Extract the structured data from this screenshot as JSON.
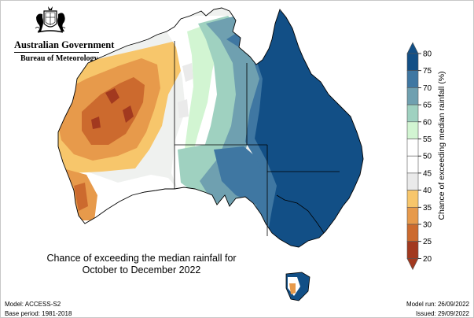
{
  "header": {
    "government": "Australian Government",
    "bureau": "Bureau of Meteorology"
  },
  "map": {
    "caption_line1": "Chance of exceeding the median rainfall for",
    "caption_line2": "October to December 2022"
  },
  "legend": {
    "title": "Chance of exceeding median rainfall (%)",
    "ticks": [
      "80",
      "75",
      "70",
      "65",
      "60",
      "55",
      "50",
      "45",
      "40",
      "35",
      "30",
      "25",
      "20"
    ],
    "bins": [
      {
        "range": "75-80+",
        "color": "#124f86"
      },
      {
        "range": "70-75",
        "color": "#3f77a2"
      },
      {
        "range": "65-70",
        "color": "#6fa0b0"
      },
      {
        "range": "60-65",
        "color": "#9fd1c0"
      },
      {
        "range": "55-60",
        "color": "#d2f5d2"
      },
      {
        "range": "50-55",
        "color": "#ffffff"
      },
      {
        "range": "45-50",
        "color": "#ffffff"
      },
      {
        "range": "40-45",
        "color": "#eaeaea"
      },
      {
        "range": "35-40",
        "color": "#f7c66b"
      },
      {
        "range": "30-35",
        "color": "#e79a4b"
      },
      {
        "range": "25-30",
        "color": "#cc6a2e"
      },
      {
        "range": "20-25",
        "color": "#a2391f"
      }
    ]
  },
  "footer": {
    "model": "Model: ACCESS-S2",
    "base_period": "Base period: 1981-2018",
    "model_run": "Model run: 26/09/2022",
    "issued": "Issued: 29/09/2022"
  }
}
